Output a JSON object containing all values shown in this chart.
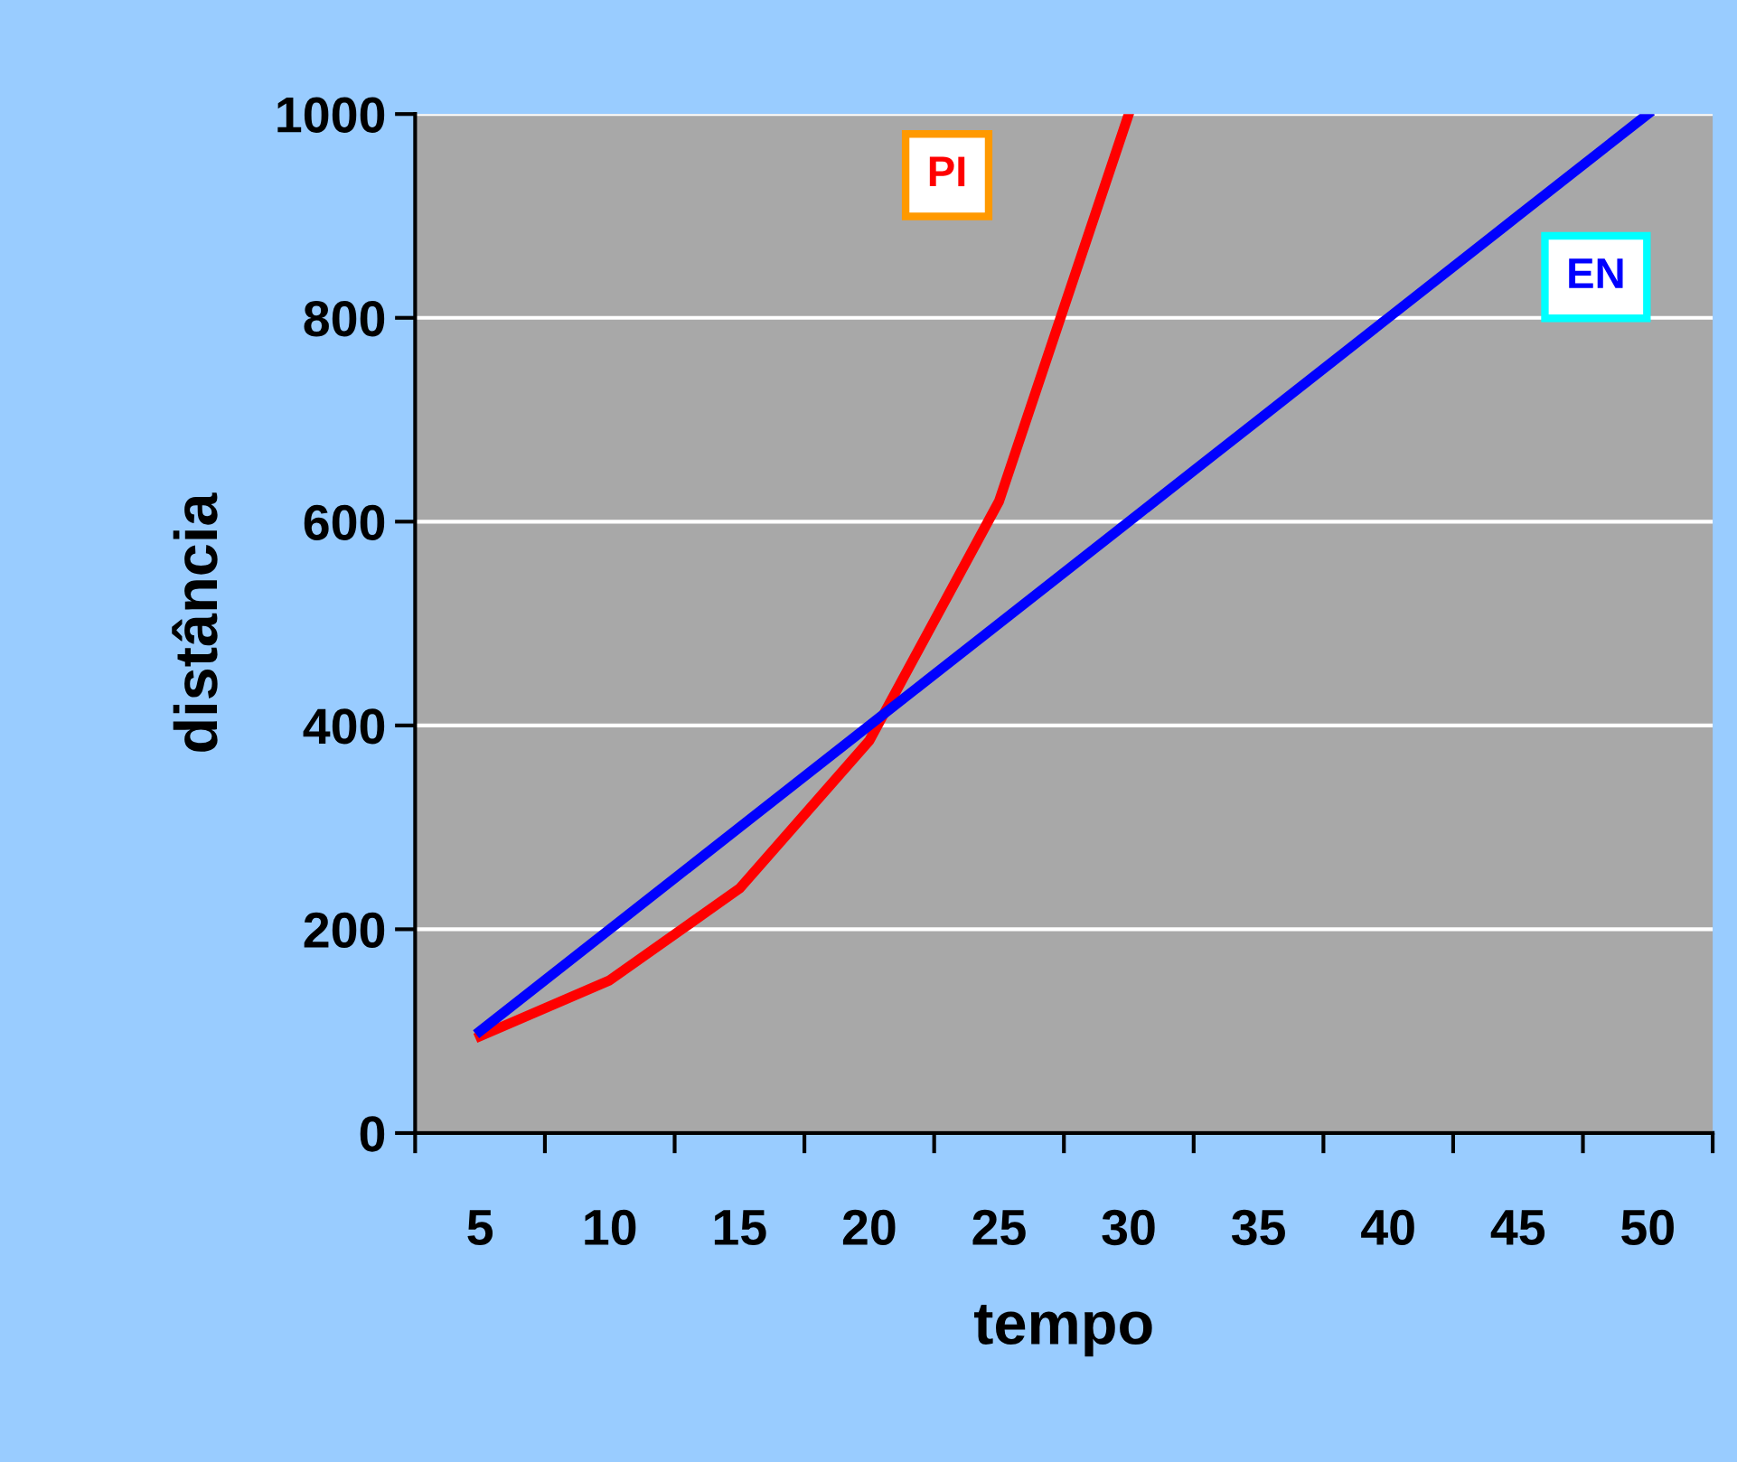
{
  "chart_data": {
    "type": "line",
    "xlabel": "tempo",
    "ylabel": "distância",
    "categories": [
      "5",
      "10",
      "15",
      "20",
      "25",
      "30",
      "35",
      "40",
      "45",
      "50"
    ],
    "series": [
      {
        "name": "PI",
        "color": "#ff0000",
        "values": [
          95,
          150,
          240,
          385,
          620,
          1000,
          null,
          null,
          null,
          null
        ]
      },
      {
        "name": "EN",
        "color": "#0000ff",
        "values": [
          100,
          200,
          300,
          400,
          500,
          600,
          700,
          800,
          900,
          1000
        ]
      }
    ],
    "ylim": [
      0,
      1000
    ],
    "yticks": [
      0,
      200,
      400,
      600,
      800,
      1000
    ],
    "grid": "y",
    "marker": "none",
    "line_style": "solid"
  }
}
